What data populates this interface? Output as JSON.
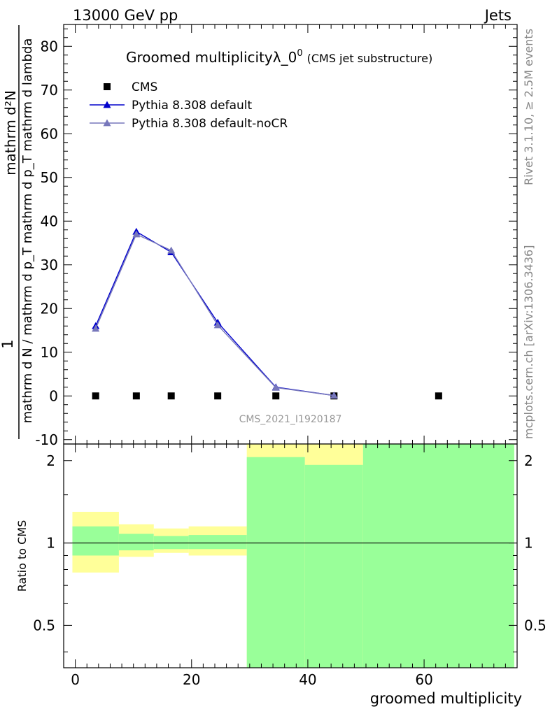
{
  "header": {
    "left": "13000 GeV pp",
    "right": "Jets"
  },
  "side_text": {
    "rivet": "Rivet 3.1.10, ≥ 2.5M events",
    "mcplots": "mcplots.cern.ch [arXiv:1306.3436]"
  },
  "watermark": "CMS_2021_I1920187",
  "chart_data": [
    {
      "type": "line",
      "title_main": "Groomed multiplicityλ_0",
      "title_sup": "0",
      "title_sub": "(CMS jet substructure)",
      "ylabel": {
        "numerator": "mathrm d²N",
        "denominator": "mathrm d N / mathrm d p_T mathrm d p_T mathrm d lambda",
        "prefix": "1"
      },
      "xlim": [
        -2,
        76
      ],
      "ylim": [
        -11,
        85
      ],
      "yticks": [
        -10,
        0,
        10,
        20,
        30,
        40,
        50,
        60,
        70,
        80
      ],
      "x": [
        3.5,
        10.5,
        16.5,
        24.5,
        34.5,
        44.5,
        62.5
      ],
      "series": [
        {
          "name": "CMS",
          "marker": "square",
          "color": "#000000",
          "points": [
            [
              3.5,
              0
            ],
            [
              10.5,
              0
            ],
            [
              16.5,
              0
            ],
            [
              24.5,
              0
            ],
            [
              34.5,
              0
            ],
            [
              44.5,
              0
            ],
            [
              62.5,
              0
            ]
          ]
        },
        {
          "name": "Pythia 8.308 default",
          "marker": "triangle",
          "color": "#0000cc",
          "points": [
            [
              3.5,
              16.0
            ],
            [
              10.5,
              37.6
            ],
            [
              16.5,
              32.9
            ],
            [
              24.5,
              16.8
            ],
            [
              34.5,
              2.0
            ],
            [
              44.5,
              0.1
            ]
          ]
        },
        {
          "name": "Pythia 8.308 default-noCR",
          "marker": "triangle",
          "color": "#7777bb",
          "points": [
            [
              3.5,
              15.4
            ],
            [
              10.5,
              37.0
            ],
            [
              16.5,
              33.3
            ],
            [
              24.5,
              16.2
            ],
            [
              34.5,
              1.9
            ],
            [
              44.5,
              0.1
            ]
          ]
        }
      ],
      "legend_position": "top-left"
    },
    {
      "type": "area",
      "ylabel": "Ratio to CMS",
      "xlabel": "groomed multiplicity",
      "xlim": [
        -2,
        76
      ],
      "ylim": [
        0.35,
        2.3
      ],
      "yscale": "log",
      "xticks": [
        0,
        20,
        40,
        60
      ],
      "yticks": [
        0.5,
        1,
        2
      ],
      "reference_line": 1,
      "bands": {
        "outer_color": "#ffff99",
        "inner_color": "#99ff99",
        "bins": [
          {
            "x0": -0.5,
            "x1": 7.5,
            "outer": [
              0.78,
              1.3
            ],
            "inner": [
              0.9,
              1.15
            ]
          },
          {
            "x0": 7.5,
            "x1": 13.5,
            "outer": [
              0.89,
              1.17
            ],
            "inner": [
              0.94,
              1.08
            ]
          },
          {
            "x0": 13.5,
            "x1": 19.5,
            "outer": [
              0.92,
              1.13
            ],
            "inner": [
              0.95,
              1.06
            ]
          },
          {
            "x0": 19.5,
            "x1": 29.5,
            "outer": [
              0.9,
              1.15
            ],
            "inner": [
              0.95,
              1.07
            ]
          },
          {
            "x0": 29.5,
            "x1": 39.5,
            "outer": [
              0.35,
              2.3
            ],
            "inner": [
              0.35,
              2.06
            ]
          },
          {
            "x0": 39.5,
            "x1": 49.5,
            "outer": [
              0.35,
              2.3
            ],
            "inner": [
              0.35,
              1.93
            ]
          },
          {
            "x0": 49.5,
            "x1": 75.5,
            "outer": [
              0.35,
              2.3
            ],
            "inner": [
              0.35,
              2.3
            ]
          }
        ]
      }
    }
  ]
}
